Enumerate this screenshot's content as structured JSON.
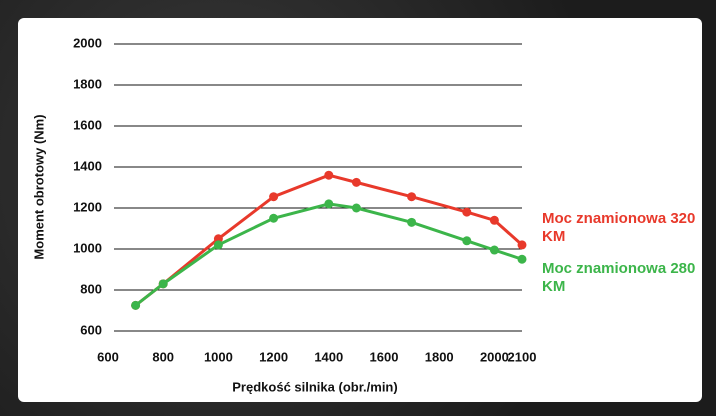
{
  "chart_data": {
    "type": "line",
    "x_label": "Prędkość silnika (obr./min)",
    "y_label": "Moment obrotowy (Nm)",
    "x": [
      700,
      800,
      1000,
      1200,
      1400,
      1500,
      1700,
      1900,
      2000,
      2100
    ],
    "series": [
      {
        "name": "Moc znamionowa 320 KM",
        "color": "#e8392b",
        "values": [
          725,
          830,
          1050,
          1255,
          1360,
          1325,
          1255,
          1180,
          1140,
          1020
        ]
      },
      {
        "name": "Moc znamionowa 280 KM",
        "color": "#3cb54a",
        "values": [
          725,
          830,
          1020,
          1150,
          1220,
          1200,
          1130,
          1040,
          995,
          950
        ]
      }
    ],
    "xlim": [
      600,
      2100
    ],
    "xticks": [
      600,
      800,
      1000,
      1200,
      1400,
      1600,
      1800,
      2000,
      2100
    ],
    "ylim": [
      600,
      2000
    ],
    "yticks": [
      600,
      800,
      1000,
      1200,
      1400,
      1600,
      1800,
      2000
    ],
    "grid": true
  }
}
